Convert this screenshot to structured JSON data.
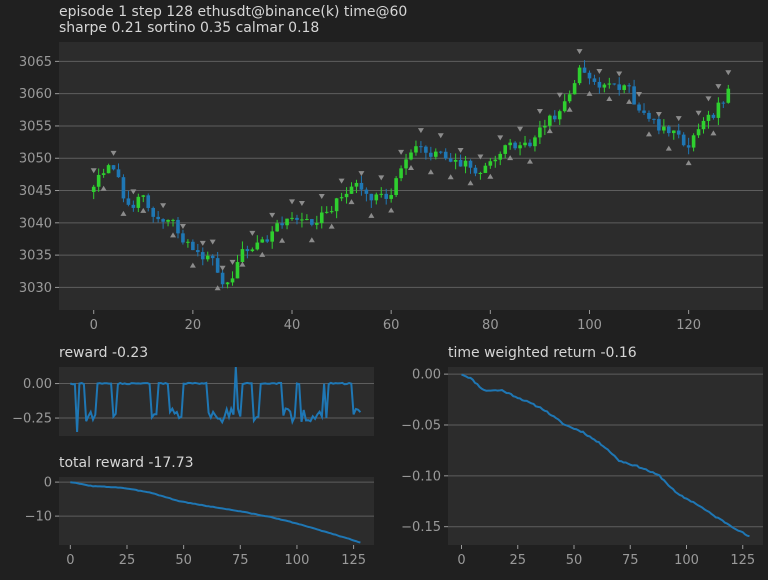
{
  "header": {
    "line1": "episode 1 step 128 ethusdt@binance(k) time@60",
    "line2": "sharpe 0.21 sortino 0.35 calmar 0.18"
  },
  "colors": {
    "background": "#202020",
    "panel": "#2c2c2c",
    "grid": "#5e5e5e",
    "text": "#d6d6d6",
    "tick": "#9a9a9a",
    "up": "#2fcf2f",
    "down": "#1f77b4",
    "marker": "#8c8c8c",
    "line": "#1f77b4"
  },
  "chart_data": [
    {
      "id": "price",
      "type": "candlestick",
      "xlim": [
        -7,
        135
      ],
      "ylim": [
        3026.5,
        3068
      ],
      "xticks": [
        0,
        20,
        40,
        60,
        80,
        100,
        120
      ],
      "yticks": [
        3030,
        3035,
        3040,
        3045,
        3050,
        3055,
        3060,
        3065
      ],
      "grid": "horizontal",
      "anchors": [
        [
          0,
          3046
        ],
        [
          4,
          3049
        ],
        [
          6,
          3044
        ],
        [
          8,
          3043
        ],
        [
          10,
          3043.5
        ],
        [
          12,
          3041
        ],
        [
          14,
          3040
        ],
        [
          16,
          3040
        ],
        [
          18,
          3037
        ],
        [
          20,
          3036
        ],
        [
          22,
          3035
        ],
        [
          24,
          3034
        ],
        [
          26,
          3031
        ],
        [
          27,
          3030
        ],
        [
          30,
          3036
        ],
        [
          34,
          3037
        ],
        [
          38,
          3040
        ],
        [
          40,
          3041
        ],
        [
          44,
          3040
        ],
        [
          46,
          3041
        ],
        [
          48,
          3042
        ],
        [
          52,
          3046
        ],
        [
          56,
          3044
        ],
        [
          58,
          3045
        ],
        [
          60,
          3044
        ],
        [
          62,
          3049
        ],
        [
          66,
          3052
        ],
        [
          68,
          3050
        ],
        [
          70,
          3051
        ],
        [
          72,
          3049
        ],
        [
          74,
          3049
        ],
        [
          76,
          3049
        ],
        [
          78,
          3047
        ],
        [
          80,
          3050
        ],
        [
          84,
          3052
        ],
        [
          88,
          3052
        ],
        [
          90,
          3055
        ],
        [
          94,
          3057
        ],
        [
          96,
          3060
        ],
        [
          98,
          3064
        ],
        [
          100,
          3063
        ],
        [
          102,
          3061
        ],
        [
          104,
          3061
        ],
        [
          108,
          3061
        ],
        [
          110,
          3057
        ],
        [
          114,
          3055
        ],
        [
          118,
          3053
        ],
        [
          120,
          3052
        ],
        [
          122,
          3054
        ],
        [
          124,
          3056
        ],
        [
          126,
          3058
        ],
        [
          128,
          3060
        ]
      ],
      "marker_buy": [
        0,
        4,
        8,
        14,
        18,
        22,
        24,
        26,
        28,
        32,
        36,
        40,
        42,
        46,
        50,
        54,
        58,
        62,
        66,
        70,
        74,
        78,
        82,
        86,
        90,
        94,
        98,
        102,
        106,
        110,
        114,
        118,
        122,
        124,
        126,
        128
      ],
      "marker_sell": [
        2,
        6,
        10,
        16,
        20,
        25,
        30,
        34,
        38,
        44,
        48,
        52,
        56,
        60,
        64,
        68,
        72,
        76,
        80,
        84,
        88,
        92,
        96,
        100,
        104,
        108,
        112,
        116,
        120,
        125
      ]
    },
    {
      "id": "reward",
      "type": "line",
      "title": "reward -0.23",
      "xlim": [
        -5,
        134
      ],
      "ylim": [
        -0.38,
        0.12
      ],
      "yticks": [
        0.0,
        -0.25
      ],
      "ytick_labels": [
        "0.00",
        "−0.25"
      ],
      "grid": "horizontal"
    },
    {
      "id": "total_reward",
      "type": "line",
      "title": "total reward -17.73",
      "xlim": [
        -5,
        134
      ],
      "ylim": [
        -18.5,
        1.5
      ],
      "xticks": [
        0,
        25,
        50,
        75,
        100,
        125
      ],
      "yticks": [
        0,
        -10
      ],
      "ytick_labels": [
        "0",
        "−10"
      ],
      "grid": "horizontal",
      "anchors": [
        [
          0,
          0
        ],
        [
          10,
          -1.2
        ],
        [
          22,
          -1.6
        ],
        [
          35,
          -3
        ],
        [
          48,
          -5.6
        ],
        [
          60,
          -7
        ],
        [
          75,
          -8.6
        ],
        [
          90,
          -10.5
        ],
        [
          100,
          -12.2
        ],
        [
          112,
          -14.5
        ],
        [
          122,
          -16.5
        ],
        [
          128,
          -17.73
        ]
      ]
    },
    {
      "id": "time_weighted_return",
      "type": "line",
      "title": "time weighted return -0.16",
      "xlim": [
        -6,
        134
      ],
      "ylim": [
        -0.168,
        0.007
      ],
      "xticks": [
        0,
        25,
        50,
        75,
        100,
        125
      ],
      "yticks": [
        0.0,
        -0.05,
        -0.1,
        -0.15
      ],
      "ytick_labels": [
        "0.00",
        "−0.05",
        "−0.10",
        "−0.15"
      ],
      "grid": "horizontal",
      "anchors": [
        [
          0,
          0
        ],
        [
          4,
          -0.004
        ],
        [
          10,
          -0.016
        ],
        [
          18,
          -0.016
        ],
        [
          26,
          -0.024
        ],
        [
          36,
          -0.034
        ],
        [
          46,
          -0.05
        ],
        [
          54,
          -0.057
        ],
        [
          64,
          -0.072
        ],
        [
          70,
          -0.085
        ],
        [
          80,
          -0.092
        ],
        [
          88,
          -0.1
        ],
        [
          96,
          -0.118
        ],
        [
          104,
          -0.127
        ],
        [
          112,
          -0.139
        ],
        [
          122,
          -0.152
        ],
        [
          128,
          -0.16
        ]
      ]
    }
  ]
}
